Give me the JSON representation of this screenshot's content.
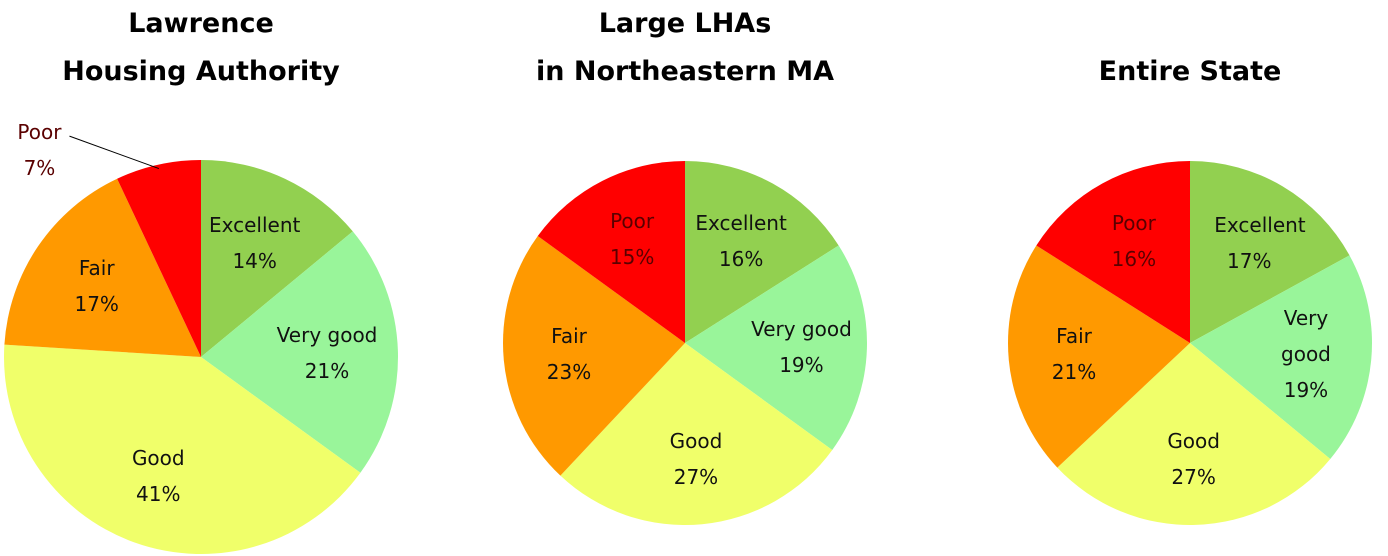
{
  "chart_data": [
    {
      "type": "pie",
      "title": [
        "Lawrence",
        "Housing Authority"
      ],
      "categories": [
        "Excellent",
        "Very good",
        "Good",
        "Fair",
        "Poor"
      ],
      "values": [
        14,
        21,
        41,
        17,
        7
      ],
      "value_labels": [
        "14%",
        "21%",
        "41%",
        "17%",
        "7%"
      ],
      "colors": [
        "#92d050",
        "#99f59a",
        "#f0ff6a",
        "#ff9900",
        "#ff0000"
      ]
    },
    {
      "type": "pie",
      "title": [
        "Large LHAs",
        "in Northeastern MA"
      ],
      "categories": [
        "Excellent",
        "Very good",
        "Good",
        "Fair",
        "Poor"
      ],
      "values": [
        16,
        19,
        27,
        23,
        15
      ],
      "value_labels": [
        "16%",
        "19%",
        "27%",
        "23%",
        "15%"
      ],
      "colors": [
        "#92d050",
        "#99f59a",
        "#f0ff6a",
        "#ff9900",
        "#ff0000"
      ]
    },
    {
      "type": "pie",
      "title": [
        "Entire State"
      ],
      "categories": [
        "Excellent",
        "Very good",
        "Good",
        "Fair",
        "Poor"
      ],
      "values": [
        17,
        19,
        27,
        21,
        16
      ],
      "value_labels": [
        "17%",
        "19%",
        "27%",
        "21%",
        "16%"
      ],
      "colors": [
        "#92d050",
        "#99f59a",
        "#f0ff6a",
        "#ff9900",
        "#ff0000"
      ]
    }
  ]
}
